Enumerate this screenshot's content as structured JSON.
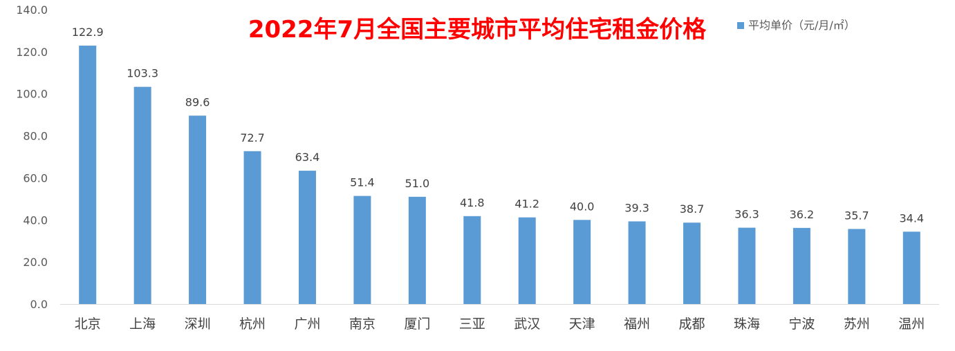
{
  "chart_data": {
    "type": "bar",
    "title": "2022年7月全国主要城市平均住宅租金价格",
    "categories": [
      "北京",
      "上海",
      "深圳",
      "杭州",
      "广州",
      "南京",
      "厦门",
      "三亚",
      "武汉",
      "天津",
      "福州",
      "成都",
      "珠海",
      "宁波",
      "苏州",
      "温州"
    ],
    "series": [
      {
        "name": "平均单价（元/月/㎡）",
        "values": [
          122.9,
          103.3,
          89.6,
          72.7,
          63.4,
          51.4,
          51.0,
          41.8,
          41.2,
          40.0,
          39.3,
          38.7,
          36.3,
          36.2,
          35.7,
          34.4
        ],
        "color": "#5b9bd5"
      }
    ],
    "value_labels": [
      "122.9",
      "103.3",
      "89.6",
      "72.7",
      "63.4",
      "51.4",
      "51.0",
      "41.8",
      "41.2",
      "40.0",
      "39.3",
      "38.7",
      "36.3",
      "36.2",
      "35.7",
      "34.4"
    ],
    "y_ticks": [
      "0.0",
      "20.0",
      "40.0",
      "60.0",
      "80.0",
      "100.0",
      "120.0",
      "140.0"
    ],
    "ylim": [
      0,
      140
    ],
    "grid": false,
    "legend_position": "top-right",
    "xlabel": "",
    "ylabel": ""
  }
}
